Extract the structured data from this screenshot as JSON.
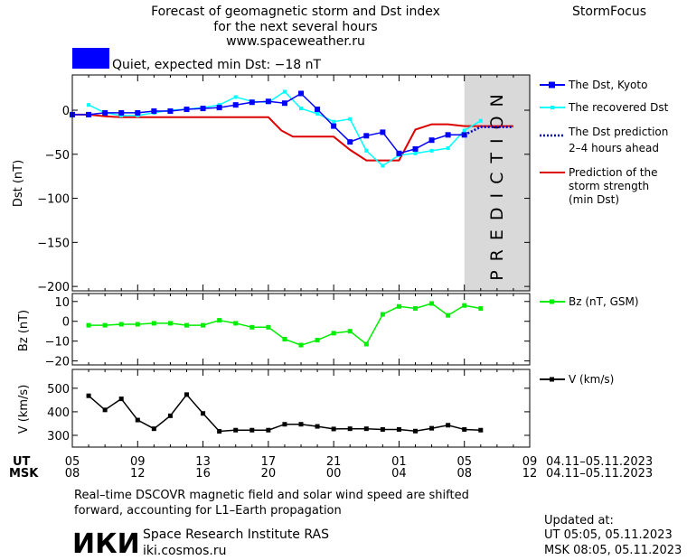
{
  "header": {
    "title_line1": "Forecast of geomagnetic storm and Dst index",
    "title_line2": "for the next several hours",
    "url": "www.spaceweather.ru",
    "brand": "StormFocus"
  },
  "status": {
    "text": "Quiet, expected min Dst: −18 nT",
    "color": "#0000ff"
  },
  "prediction_label": "PREDICTION",
  "legend": {
    "dst_kyoto": "The Dst, Kyoto",
    "recovered": "The recovered Dst",
    "pred_line1": "The Dst prediction",
    "pred_line2": "2–4 hours ahead",
    "storm_line1": "Prediction of the",
    "storm_line2": "storm strength",
    "storm_line3": "(min Dst)",
    "bz": "Bz (nT, GSM)",
    "v": "V (km/s)"
  },
  "time_axis": {
    "ut_label": "UT",
    "msk_label": "MSK",
    "ut_ticks": [
      "05",
      "09",
      "13",
      "17",
      "21",
      "01",
      "05",
      "09"
    ],
    "msk_ticks": [
      "08",
      "12",
      "16",
      "20",
      "00",
      "04",
      "08",
      "12"
    ],
    "ut_dates": "04.11–05.11.2023",
    "msk_dates": "04.11–05.11.2023"
  },
  "footer": {
    "note_line1": "Real–time DSCOVR magnetic field and solar wind speed are shifted",
    "note_line2": "forward, accounting for L1–Earth propagation",
    "logo": "ИКИ",
    "org": "Space Research Institute RAS",
    "site": "iki.cosmos.ru",
    "updated_label": "Updated at:",
    "updated_ut": "UT   05:05, 05.11.2023",
    "updated_msk": "MSK 08:05, 05.11.2023"
  },
  "colors": {
    "dst_kyoto": "#0000ff",
    "recovered": "#00ffff",
    "prediction": "#0000cc",
    "storm": "#dd0000",
    "bz": "#00ee00",
    "v": "#000000",
    "prediction_band": "#d9d9d9"
  },
  "chart_data": [
    {
      "type": "line",
      "title": "Forecast of geomagnetic storm and Dst index",
      "ylabel": "Dst (nT)",
      "xlabel": "UT",
      "xlim": [
        5,
        33
      ],
      "ylim": [
        -205,
        40
      ],
      "yticks": [
        0,
        -50,
        -100,
        -150,
        -200
      ],
      "series": [
        {
          "name": "The Dst, Kyoto",
          "x": [
            5,
            6,
            7,
            8,
            9,
            10,
            11,
            12,
            13,
            14,
            15,
            16,
            17,
            18,
            19,
            20,
            21,
            22,
            23,
            24,
            25,
            26,
            27,
            28,
            29
          ],
          "y": [
            -5,
            -5,
            -3,
            -3,
            -3,
            -1,
            -1,
            1,
            2,
            3,
            6,
            9,
            10,
            8,
            19,
            1,
            -18,
            -36,
            -29,
            -25,
            -49,
            -44,
            -34,
            -28,
            -28
          ]
        },
        {
          "name": "The recovered Dst",
          "x": [
            6,
            7,
            8,
            9,
            10,
            11,
            12,
            13,
            14,
            15,
            16,
            17,
            18,
            19,
            20,
            21,
            22,
            23,
            24,
            25,
            26,
            27,
            28,
            29,
            30
          ],
          "y": [
            6,
            -3,
            -6,
            -6,
            -3,
            0,
            1,
            3,
            6,
            15,
            10,
            9,
            21,
            2,
            -4,
            -13,
            -10,
            -46,
            -63,
            -51,
            -49,
            -46,
            -43,
            -23,
            -12
          ]
        },
        {
          "name": "The Dst prediction",
          "x": [
            29,
            30,
            31,
            32
          ],
          "y": [
            -28,
            -19,
            -19,
            -19
          ]
        },
        {
          "name": "Prediction of the storm strength",
          "x": [
            5,
            6,
            7,
            8,
            9,
            10,
            11,
            12,
            13,
            14,
            15,
            16,
            17,
            17.8,
            18.5,
            19,
            20,
            21,
            22,
            23,
            24,
            25,
            26,
            27,
            28,
            29,
            30,
            31,
            32
          ],
          "y": [
            -5,
            -5,
            -7,
            -8,
            -8,
            -8,
            -8,
            -8,
            -8,
            -8,
            -8,
            -8,
            -8,
            -23,
            -30,
            -30,
            -30,
            -30,
            -45,
            -57,
            -57,
            -57,
            -22,
            -16,
            -16,
            -18,
            -18,
            -18,
            -18
          ]
        }
      ]
    },
    {
      "type": "line",
      "ylabel": "Bz (nT)",
      "xlim": [
        5,
        33
      ],
      "ylim": [
        -22,
        14
      ],
      "yticks": [
        10,
        0,
        -10,
        -20
      ],
      "series": [
        {
          "name": "Bz (nT, GSM)",
          "x": [
            6,
            7,
            8,
            9,
            10,
            11,
            12,
            13,
            14,
            15,
            16,
            17,
            18,
            19,
            20,
            21,
            22,
            23,
            24,
            25,
            26,
            27,
            28,
            29,
            30
          ],
          "y": [
            -2,
            -2,
            -1.5,
            -1.5,
            -1,
            -1,
            -2,
            -2,
            0.5,
            -1,
            -3,
            -3,
            -9,
            -12,
            -9.5,
            -6,
            -5,
            -11.5,
            3.5,
            7.5,
            6.5,
            9,
            3,
            8,
            6.5
          ]
        }
      ]
    },
    {
      "type": "line",
      "ylabel": "V (km/s)",
      "xlim": [
        5,
        33
      ],
      "ylim": [
        250,
        580
      ],
      "yticks": [
        300,
        400,
        500
      ],
      "series": [
        {
          "name": "V (km/s)",
          "x": [
            6,
            7,
            8,
            9,
            10,
            11,
            12,
            13,
            14,
            15,
            16,
            17,
            18,
            19,
            20,
            21,
            22,
            23,
            24,
            25,
            26,
            27,
            28,
            29,
            30
          ],
          "y": [
            468,
            408,
            455,
            365,
            328,
            383,
            473,
            393,
            317,
            322,
            322,
            322,
            347,
            347,
            338,
            327,
            328,
            328,
            325,
            325,
            318,
            330,
            343,
            325,
            322
          ]
        }
      ]
    }
  ]
}
